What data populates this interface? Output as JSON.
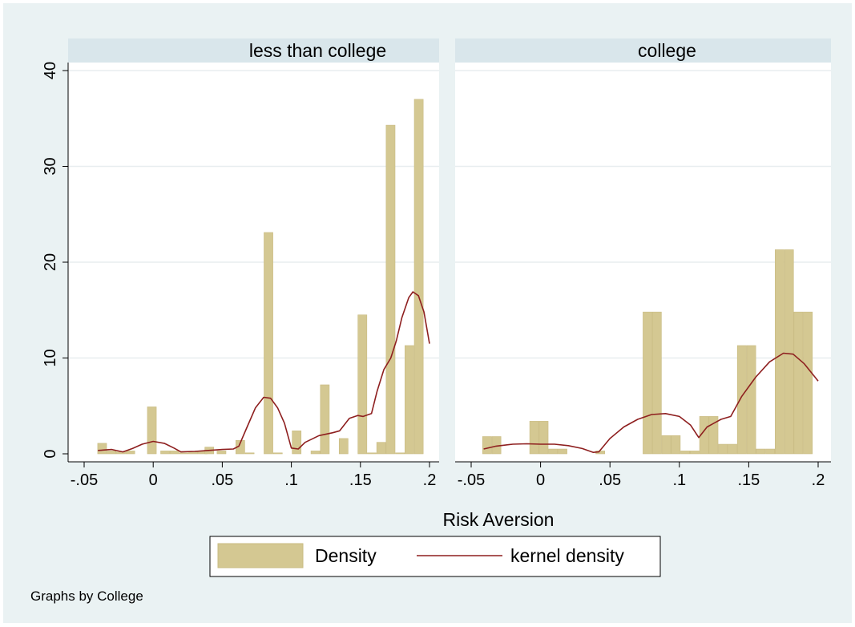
{
  "chart_data": {
    "type": "bar",
    "shared": {
      "xlabel": "Risk Aversion",
      "ylabel": "",
      "xlim": [
        -0.05,
        0.2
      ],
      "ylim": [
        0,
        40
      ],
      "x_ticks": [
        -0.05,
        0,
        0.05,
        0.1,
        0.15,
        0.2
      ],
      "x_tick_labels": [
        "-.05",
        "0",
        ".05",
        ".1",
        ".15",
        ".2"
      ],
      "y_ticks": [
        0,
        10,
        20,
        30,
        40
      ],
      "y_tick_labels": [
        "0",
        "10",
        "20",
        "30",
        "40"
      ],
      "grid": true,
      "legend": {
        "placement": "bottom",
        "entries": [
          {
            "label": "Density",
            "kind": "bar",
            "color": "#d4c892"
          },
          {
            "label": "kernel density",
            "kind": "line",
            "color": "#8e1f1f"
          }
        ]
      },
      "note": "Graphs by College",
      "colors": {
        "background": "#eaf2f3",
        "plot_background": "#ffffff",
        "strip": "#d9e6eb",
        "bar": "#d4c892",
        "bar_edge": "#c9bb82",
        "kde_line": "#8e1f1f",
        "gridline": "#e8edef"
      }
    },
    "panels": [
      {
        "title": "less than college",
        "series": [
          {
            "name": "Density",
            "bar_width": 0.0068,
            "bars": [
              {
                "x": -0.0368,
                "y": 1.1
              },
              {
                "x": -0.03,
                "y": 0.3
              },
              {
                "x": -0.0232,
                "y": 0.2
              },
              {
                "x": -0.0164,
                "y": 0.3
              },
              {
                "x": -0.0008,
                "y": 4.9
              },
              {
                "x": 0.0088,
                "y": 0.3
              },
              {
                "x": 0.0156,
                "y": 0.3
              },
              {
                "x": 0.0224,
                "y": 0.1
              },
              {
                "x": 0.0292,
                "y": 0.2
              },
              {
                "x": 0.036,
                "y": 0.3
              },
              {
                "x": 0.0408,
                "y": 0.7
              },
              {
                "x": 0.0496,
                "y": 0.3
              },
              {
                "x": 0.0632,
                "y": 1.4
              },
              {
                "x": 0.07,
                "y": 0.1
              },
              {
                "x": 0.0836,
                "y": 23.1
              },
              {
                "x": 0.0904,
                "y": 0.1
              },
              {
                "x": 0.104,
                "y": 2.4
              },
              {
                "x": 0.1176,
                "y": 0.3
              },
              {
                "x": 0.1244,
                "y": 7.2
              },
              {
                "x": 0.138,
                "y": 1.6
              },
              {
                "x": 0.1516,
                "y": 14.5
              },
              {
                "x": 0.1584,
                "y": 0.1
              },
              {
                "x": 0.1652,
                "y": 1.2
              },
              {
                "x": 0.172,
                "y": 34.3
              },
              {
                "x": 0.1788,
                "y": 0.1
              },
              {
                "x": 0.1856,
                "y": 11.3
              },
              {
                "x": 0.1924,
                "y": 37.0
              }
            ]
          },
          {
            "name": "kernel density",
            "points": [
              [
                -0.04,
                0.35
              ],
              [
                -0.03,
                0.45
              ],
              [
                -0.022,
                0.2
              ],
              [
                -0.015,
                0.55
              ],
              [
                -0.008,
                1.0
              ],
              [
                0.0,
                1.3
              ],
              [
                0.008,
                1.1
              ],
              [
                0.015,
                0.6
              ],
              [
                0.02,
                0.2
              ],
              [
                0.03,
                0.25
              ],
              [
                0.04,
                0.35
              ],
              [
                0.05,
                0.45
              ],
              [
                0.058,
                0.5
              ],
              [
                0.062,
                0.8
              ],
              [
                0.068,
                2.8
              ],
              [
                0.074,
                4.8
              ],
              [
                0.08,
                5.9
              ],
              [
                0.085,
                5.8
              ],
              [
                0.09,
                4.8
              ],
              [
                0.095,
                3.2
              ],
              [
                0.1,
                0.6
              ],
              [
                0.105,
                0.5
              ],
              [
                0.11,
                1.2
              ],
              [
                0.12,
                1.9
              ],
              [
                0.13,
                2.2
              ],
              [
                0.135,
                2.4
              ],
              [
                0.142,
                3.7
              ],
              [
                0.148,
                4.0
              ],
              [
                0.152,
                3.9
              ],
              [
                0.158,
                4.2
              ],
              [
                0.162,
                6.5
              ],
              [
                0.167,
                8.8
              ],
              [
                0.172,
                10.0
              ],
              [
                0.176,
                11.8
              ],
              [
                0.18,
                14.2
              ],
              [
                0.185,
                16.3
              ],
              [
                0.188,
                16.9
              ],
              [
                0.192,
                16.5
              ],
              [
                0.196,
                14.8
              ],
              [
                0.2,
                11.5
              ]
            ]
          }
        ]
      },
      {
        "title": "college",
        "series": [
          {
            "name": "Density",
            "bar_width": 0.0068,
            "bars": [
              {
                "x": -0.0384,
                "y": 1.8
              },
              {
                "x": -0.0316,
                "y": 1.8
              },
              {
                "x": -0.0044,
                "y": 3.4
              },
              {
                "x": 0.0024,
                "y": 3.4
              },
              {
                "x": 0.0092,
                "y": 0.5
              },
              {
                "x": 0.016,
                "y": 0.5
              },
              {
                "x": 0.0432,
                "y": 0.3
              },
              {
                "x": 0.0772,
                "y": 14.8
              },
              {
                "x": 0.084,
                "y": 14.8
              },
              {
                "x": 0.0908,
                "y": 1.9
              },
              {
                "x": 0.0976,
                "y": 1.9
              },
              {
                "x": 0.1044,
                "y": 0.3
              },
              {
                "x": 0.1112,
                "y": 0.3
              },
              {
                "x": 0.118,
                "y": 3.9
              },
              {
                "x": 0.1248,
                "y": 3.9
              },
              {
                "x": 0.1316,
                "y": 1.0
              },
              {
                "x": 0.1384,
                "y": 1.0
              },
              {
                "x": 0.1452,
                "y": 11.3
              },
              {
                "x": 0.152,
                "y": 11.3
              },
              {
                "x": 0.1588,
                "y": 0.5
              },
              {
                "x": 0.1656,
                "y": 0.5
              },
              {
                "x": 0.1724,
                "y": 21.3
              },
              {
                "x": 0.1792,
                "y": 21.3
              },
              {
                "x": 0.186,
                "y": 14.8
              },
              {
                "x": 0.1928,
                "y": 14.8
              }
            ]
          },
          {
            "name": "kernel density",
            "points": [
              [
                -0.041,
                0.5
              ],
              [
                -0.032,
                0.8
              ],
              [
                -0.02,
                1.0
              ],
              [
                -0.01,
                1.05
              ],
              [
                0.0,
                1.0
              ],
              [
                0.01,
                1.0
              ],
              [
                0.02,
                0.85
              ],
              [
                0.03,
                0.55
              ],
              [
                0.038,
                0.15
              ],
              [
                0.042,
                0.2
              ],
              [
                0.05,
                1.6
              ],
              [
                0.06,
                2.8
              ],
              [
                0.07,
                3.6
              ],
              [
                0.08,
                4.1
              ],
              [
                0.09,
                4.2
              ],
              [
                0.1,
                3.9
              ],
              [
                0.108,
                3.0
              ],
              [
                0.114,
                1.7
              ],
              [
                0.12,
                2.8
              ],
              [
                0.13,
                3.6
              ],
              [
                0.137,
                3.9
              ],
              [
                0.145,
                6.0
              ],
              [
                0.155,
                8.0
              ],
              [
                0.165,
                9.6
              ],
              [
                0.175,
                10.5
              ],
              [
                0.182,
                10.4
              ],
              [
                0.19,
                9.4
              ],
              [
                0.2,
                7.6
              ]
            ]
          }
        ]
      }
    ]
  }
}
